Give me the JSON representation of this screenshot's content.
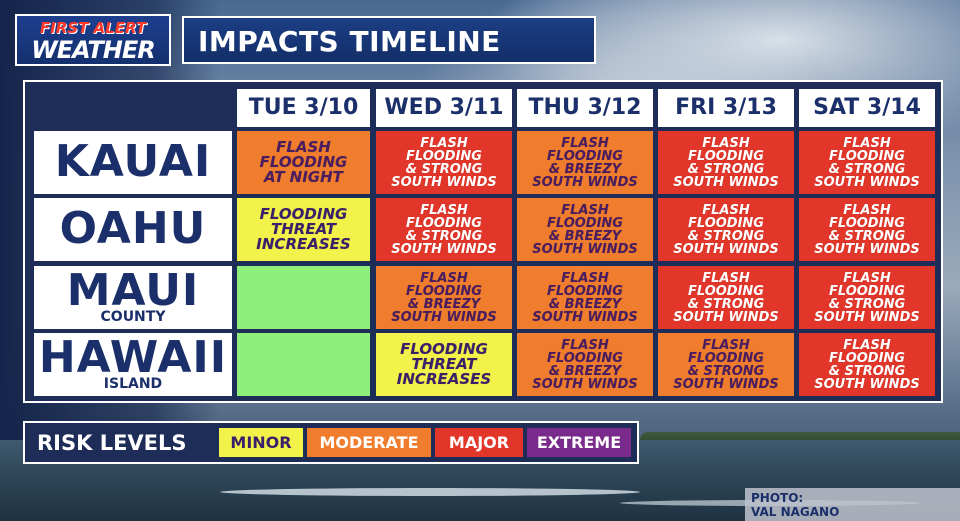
{
  "logo": {
    "line1": "FIRST ALERT",
    "line2": "WEATHER"
  },
  "title": "IMPACTS TIMELINE",
  "days": [
    "TUE 3/10",
    "WED 3/11",
    "THU 3/12",
    "FRI 3/13",
    "SAT 3/14"
  ],
  "regions": [
    {
      "name": "KAUAI",
      "sub": ""
    },
    {
      "name": "OAHU",
      "sub": ""
    },
    {
      "name": "MAUI",
      "sub": "COUNTY"
    },
    {
      "name": "HAWAII",
      "sub": "ISLAND"
    }
  ],
  "grid": [
    [
      {
        "level": "moderate",
        "text": "FLASH\nFLOODING\nAT NIGHT"
      },
      {
        "level": "major",
        "text": "FLASH\nFLOODING\n& STRONG\nSOUTH WINDS"
      },
      {
        "level": "moderate",
        "text": "FLASH\nFLOODING\n& BREEZY\nSOUTH WINDS"
      },
      {
        "level": "major",
        "text": "FLASH\nFLOODING\n& STRONG\nSOUTH WINDS"
      },
      {
        "level": "major",
        "text": "FLASH\nFLOODING\n& STRONG\nSOUTH WINDS"
      }
    ],
    [
      {
        "level": "minor",
        "text": "FLOODING\nTHREAT\nINCREASES"
      },
      {
        "level": "major",
        "text": "FLASH\nFLOODING\n& STRONG\nSOUTH WINDS"
      },
      {
        "level": "moderate",
        "text": "FLASH\nFLOODING\n& BREEZY\nSOUTH WINDS"
      },
      {
        "level": "major",
        "text": "FLASH\nFLOODING\n& STRONG\nSOUTH WINDS"
      },
      {
        "level": "major",
        "text": "FLASH\nFLOODING\n& STRONG\nSOUTH WINDS"
      }
    ],
    [
      {
        "level": "none",
        "text": ""
      },
      {
        "level": "moderate",
        "text": "FLASH\nFLOODING\n& BREEZY\nSOUTH WINDS"
      },
      {
        "level": "moderate",
        "text": "FLASH\nFLOODING\n& BREEZY\nSOUTH WINDS"
      },
      {
        "level": "major",
        "text": "FLASH\nFLOODING\n& STRONG\nSOUTH WINDS"
      },
      {
        "level": "major",
        "text": "FLASH\nFLOODING\n& STRONG\nSOUTH WINDS"
      }
    ],
    [
      {
        "level": "none",
        "text": ""
      },
      {
        "level": "minor",
        "text": "FLOODING\nTHREAT\nINCREASES"
      },
      {
        "level": "moderate",
        "text": "FLASH\nFLOODING\n& BREEZY\nSOUTH WINDS"
      },
      {
        "level": "moderate",
        "text": "FLASH\nFLOODING\n& STRONG\nSOUTH WINDS"
      },
      {
        "level": "major",
        "text": "FLASH\nFLOODING\n& STRONG\nSOUTH WINDS"
      }
    ]
  ],
  "legend": {
    "label": "RISK LEVELS",
    "levels": [
      {
        "key": "minor",
        "label": "MINOR",
        "color": "#f3f24a"
      },
      {
        "key": "moderate",
        "label": "MODERATE",
        "color": "#f07d2d"
      },
      {
        "key": "major",
        "label": "MAJOR",
        "color": "#e2362a"
      },
      {
        "key": "extreme",
        "label": "EXTREME",
        "color": "#7a2a8a"
      }
    ]
  },
  "credit": "PHOTO:\nVAL NAGANO"
}
